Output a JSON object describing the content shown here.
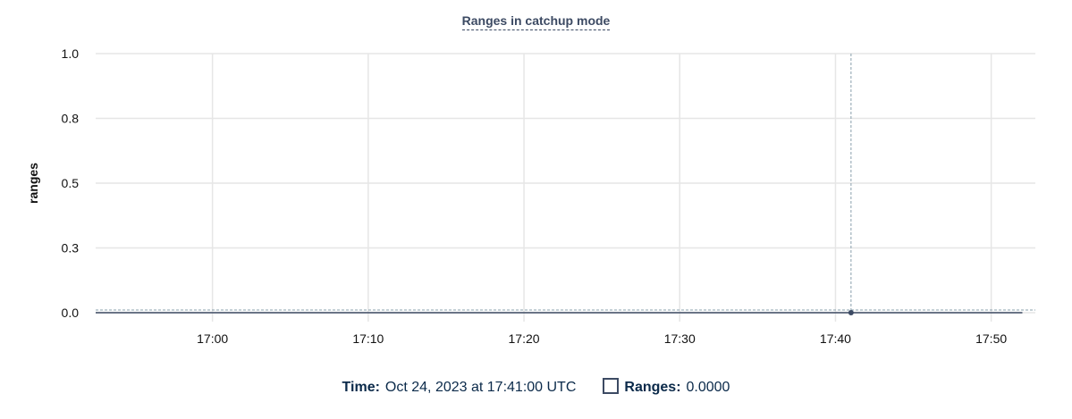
{
  "chart_data": {
    "type": "line",
    "title": "Ranges in catchup mode",
    "ylabel": "ranges",
    "xlabel": "",
    "ylim": [
      0,
      1
    ],
    "yticks": [
      0,
      0.25,
      0.5,
      0.75,
      1
    ],
    "ytick_labels": [
      "0.0",
      "0.3",
      "0.5",
      "0.8",
      "1.0"
    ],
    "xlim": [
      "16:52:30",
      "17:52:50"
    ],
    "xticks": [
      "17:00",
      "17:10",
      "17:20",
      "17:30",
      "17:40",
      "17:50"
    ],
    "grid": true,
    "series": [
      {
        "name": "Ranges",
        "color": "#3c4a63",
        "x": [
          "16:52:30",
          "16:55",
          "17:00",
          "17:05",
          "17:10",
          "17:15",
          "17:20",
          "17:25",
          "17:30",
          "17:35",
          "17:40",
          "17:41",
          "17:45",
          "17:50",
          "17:52"
        ],
        "values": [
          0,
          0,
          0,
          0,
          0,
          0,
          0,
          0,
          0,
          0,
          0,
          0,
          0,
          0,
          0
        ]
      }
    ],
    "hover": {
      "x": "17:41",
      "value": 0
    }
  },
  "legend": {
    "time_label": "Time:",
    "time_value": "Oct 24, 2023 at 17:41:00 UTC",
    "series_label": "Ranges:",
    "series_value": "0.0000"
  }
}
